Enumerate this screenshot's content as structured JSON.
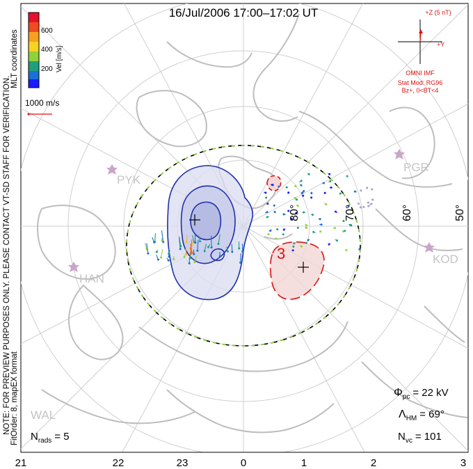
{
  "title": "16/Jul/2006 17:00–17:02 UT",
  "coordinate_system": "MLT coordinates",
  "colorbar": {
    "label": "Vel [m/s]",
    "ticks": [
      "600",
      "400",
      "200"
    ],
    "colors": [
      "#e8102a",
      "#f06a18",
      "#f7b81f",
      "#8fd23a",
      "#1fa07a",
      "#1b6fd6",
      "#1b1bff"
    ]
  },
  "vector_scale": {
    "label": "1000 m/s",
    "color": "#d11"
  },
  "preview_note": "NOTE: FOR PREVIEW PURPOSES ONLY. PLEASE CONTACT VT-SD STAFF FOR VERIFICATION.",
  "fit_note": "FitOrder: 8, mapEX format",
  "imf": {
    "z_label": "+Z (5 nT)",
    "y_label": "+Y",
    "source": "OMNI IMF",
    "model": "Stat Mod: RG96",
    "condition": "Bz+, 0<BT<4",
    "color": "#d11"
  },
  "stations": [
    {
      "code": "PYK",
      "name": "pyk-station"
    },
    {
      "code": "HAN",
      "name": "han-station"
    },
    {
      "code": "PGR",
      "name": "pgr-station"
    },
    {
      "code": "KOD",
      "name": "kod-station"
    },
    {
      "code": "WAL",
      "name": "wal-station"
    }
  ],
  "latitude_labels": [
    "80°",
    "70°",
    "60°",
    "50°"
  ],
  "potential_labels": {
    "negative_min": "",
    "positive_max": "3"
  },
  "stats": {
    "phi_symbol": "Φ",
    "phi_sub": "pc",
    "phi_value": "= 22 kV",
    "lambda_symbol": "Λ",
    "lambda_sub": "HM",
    "lambda_value": "= 69°",
    "nvc_symbol": "N",
    "nvc_sub": "vc",
    "nvc_value": "= 101",
    "nrads_symbol": "N",
    "nrads_sub": "rads",
    "nrads_value": "= 5"
  },
  "mlt_axis": [
    "21",
    "22",
    "23",
    "0",
    "1",
    "2",
    "3"
  ],
  "colors": {
    "map_line": "#bdbdbd",
    "grid": "#cfcfcf",
    "negative_cell": "#1f2fa8",
    "positive_cell": "#d11",
    "station": "#c9a6c9"
  }
}
